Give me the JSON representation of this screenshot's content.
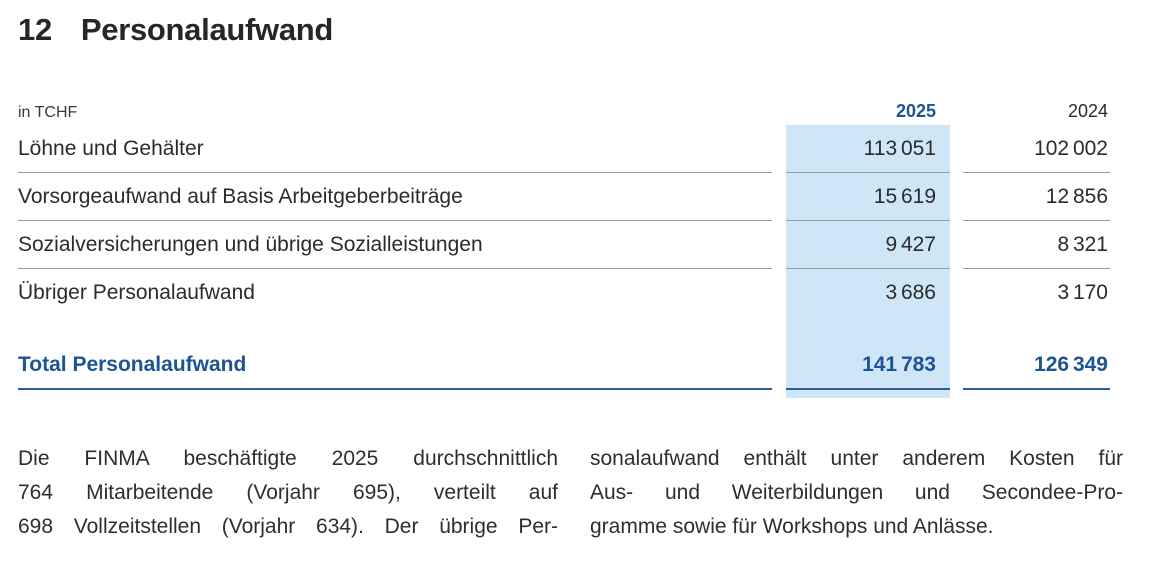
{
  "title": {
    "number": "12",
    "text": "Personalaufwand"
  },
  "table": {
    "unit_label": "in TCHF",
    "col_2025": "2025",
    "col_2024": "2024",
    "rows": [
      {
        "label": "Löhne und Gehälter",
        "y2025": "113 051",
        "y2024": "102 002"
      },
      {
        "label": "Vorsorgeaufwand auf Basis Arbeitgeberbeiträge",
        "y2025": "15 619",
        "y2024": "12 856"
      },
      {
        "label": "Sozialversicherungen und übrige Sozialleistungen",
        "y2025": "9 427",
        "y2024": "8 321"
      },
      {
        "label": "Übriger Personalaufwand",
        "y2025": "3 686",
        "y2024": "3 170"
      }
    ],
    "total": {
      "label": "Total Personalaufwand",
      "y2025": "141 783",
      "y2024": "126 349"
    }
  },
  "paragraph": {
    "left_lines": [
      "Die FINMA beschäftigte 2025 durchschnittlich",
      "764 Mitarbeitende (Vorjahr 695), verteilt auf",
      "698 Vollzeitstellen (Vorjahr 634). Der übrige Per-"
    ],
    "right_lines": [
      "sonalaufwand enthält unter anderem Kosten für",
      "Aus- und Weiterbildungen und Secondee-Pro-",
      "gramme sowie für Workshops und Anlässe."
    ]
  },
  "colors": {
    "accent_blue": "#1d5493",
    "total_rule_blue": "#2d5f9f",
    "highlight_blue": "#cfe6f7",
    "rule_gray": "#959ba6",
    "text": "#2b2b2b"
  }
}
